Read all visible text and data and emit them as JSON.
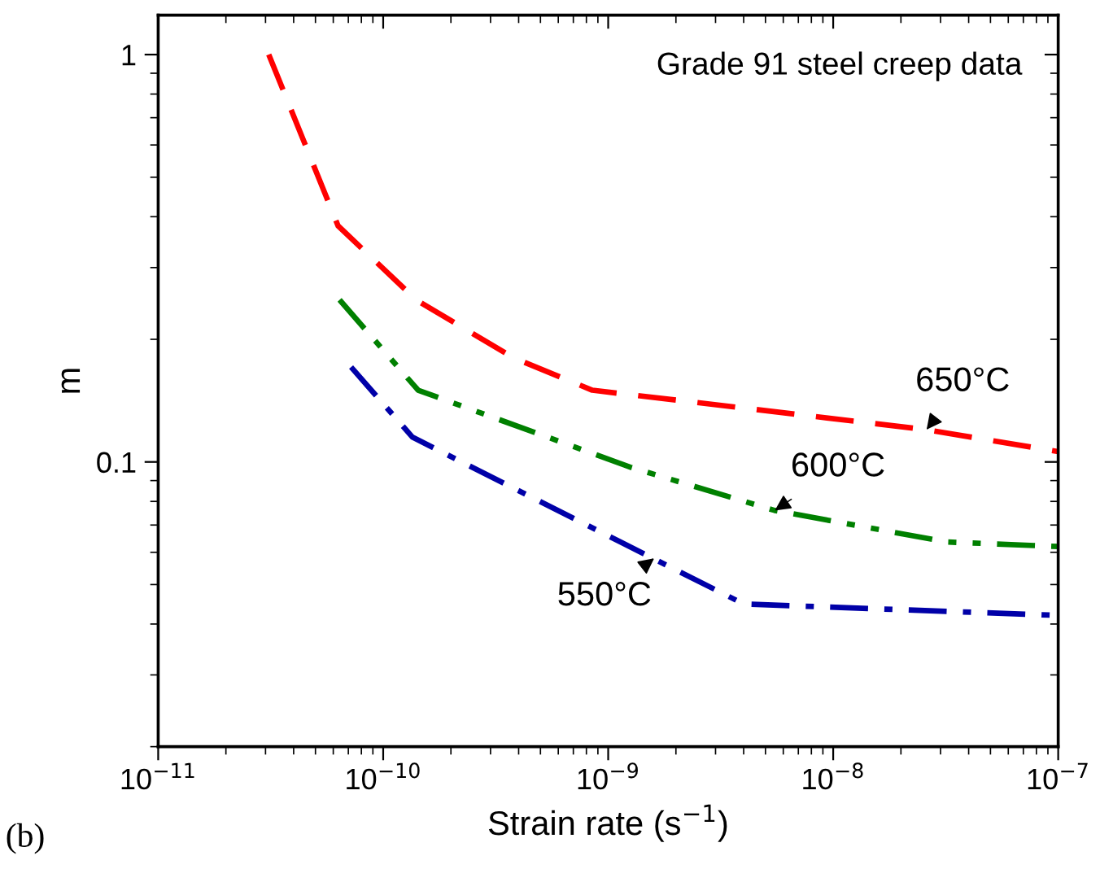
{
  "chart_data": {
    "type": "line",
    "xlabel": "Strain rate (s$^{−1}$)",
    "ylabel": "m",
    "log": "xy",
    "grid": false,
    "xlim": [
      1e-11,
      1e-07
    ],
    "ylim": [
      0.02,
      1.25
    ],
    "xticks": [
      {
        "value": 1e-11,
        "label": "10$^{−11}$"
      },
      {
        "value": 1e-10,
        "label": "10$^{−10}$"
      },
      {
        "value": 1e-09,
        "label": "10$^{−9}$"
      },
      {
        "value": 1e-08,
        "label": "10$^{−8}$"
      },
      {
        "value": 1e-07,
        "label": "10$^{−7}$"
      }
    ],
    "yticks": [
      0.1,
      1
    ],
    "series": [
      {
        "color": "#ff0000",
        "line_style": "dashed",
        "x": [
          3.1e-11,
          6.3e-11,
          1.4e-10,
          3.8e-10,
          8.5e-10,
          2.6e-08,
          1e-07
        ],
        "values": [
          1,
          0.38,
          0.25,
          0.18,
          0.15,
          0.12,
          0.106
        ]
      },
      {
        "color": "#008000",
        "line_style": "dashdotdot",
        "x": [
          6.4e-11,
          1.43e-10,
          1.26e-09,
          5.5e-09,
          3.2e-08,
          1e-07
        ],
        "values": [
          0.25,
          0.15,
          0.097,
          0.076,
          0.0636,
          0.062
        ]
      },
      {
        "color": "#0000a8",
        "line_style": "dashdot",
        "x": [
          7.2e-11,
          1.35e-10,
          4e-09,
          1e-07
        ],
        "values": [
          0.171,
          0.115,
          0.0448,
          0.042
        ]
      }
    ],
    "annotations": [
      "Grade 91 steel creep data",
      {
        "text": "650°C",
        "x": 2.6e-08,
        "y": 0.12
      },
      {
        "text": "600°C",
        "x": 5.5e-09,
        "y": 0.076
      },
      {
        "text": "550°C",
        "x": 1.6e-09,
        "y": 0.058
      },
      "(b)"
    ]
  }
}
